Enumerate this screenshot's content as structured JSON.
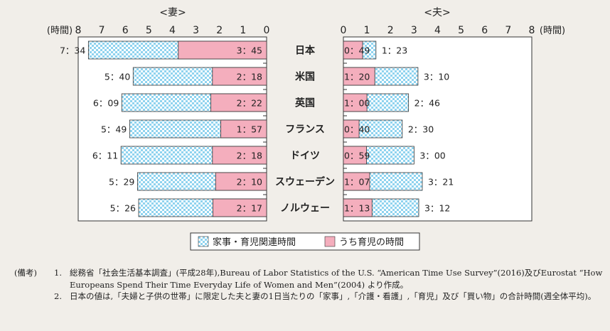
{
  "chart_data": {
    "type": "bar",
    "unit_label": "(時間)",
    "panels": [
      {
        "title": "<妻>",
        "ticks": [
          "8",
          "7",
          "6",
          "5",
          "4",
          "3",
          "2",
          "1",
          "0"
        ],
        "xlim": [
          0,
          8
        ],
        "direction": "right-to-left"
      },
      {
        "title": "<夫>",
        "ticks": [
          "0",
          "1",
          "2",
          "3",
          "4",
          "5",
          "6",
          "7",
          "8"
        ],
        "xlim": [
          0,
          8
        ],
        "direction": "left-to-right"
      }
    ],
    "categories": [
      "日本",
      "米国",
      "英国",
      "フランス",
      "ドイツ",
      "スウェーデン",
      "ノルウェー"
    ],
    "series": [
      {
        "name": "家事・育児関連時間",
        "color": "#8fd3ef",
        "pattern": "checker"
      },
      {
        "name": "うち育児の時間",
        "color": "#f4aebd"
      }
    ],
    "wife": {
      "total": [
        7.5667,
        5.6667,
        6.15,
        5.8167,
        6.1833,
        5.4833,
        5.4333
      ],
      "total_lbl": [
        "7：34",
        "5：40",
        "6：09",
        "5：49",
        "6：11",
        "5：29",
        "5：26"
      ],
      "child": [
        3.75,
        2.3,
        2.3667,
        1.95,
        2.3,
        2.1667,
        2.2833
      ],
      "child_lbl": [
        "3：45",
        "2：18",
        "2：22",
        "1：57",
        "2：18",
        "2：10",
        "2：17"
      ]
    },
    "husband": {
      "total": [
        1.3833,
        3.1667,
        2.7667,
        2.5,
        3.0,
        3.35,
        3.2
      ],
      "total_lbl": [
        "1：23",
        "3：10",
        "2：46",
        "2：30",
        "3：00",
        "3：21",
        "3：12"
      ],
      "child": [
        0.8167,
        1.3333,
        1.0,
        0.6667,
        0.9833,
        1.1167,
        1.2167
      ],
      "child_lbl": [
        "0：49",
        "1：20",
        "1：00",
        "0：40",
        "0：59",
        "1：07",
        "1：13"
      ]
    }
  },
  "notes": {
    "heading": "(備考)",
    "items": [
      {
        "num": "1.",
        "text": "総務省「社会生活基本調査」(平成28年),Bureau of Labor Statistics of the U.S. “American Time Use Survey”(2016)及びEurostat “How Europeans Spend Their Time Everyday Life of Women and Men”(2004) より作成。"
      },
      {
        "num": "2.",
        "text": "日本の値は,「夫婦と子供の世帯」に限定した夫と妻の1日当たりの「家事」,「介護・看護」,「育児」及び「買い物」の合計時間(週全体平均)。"
      }
    ]
  }
}
